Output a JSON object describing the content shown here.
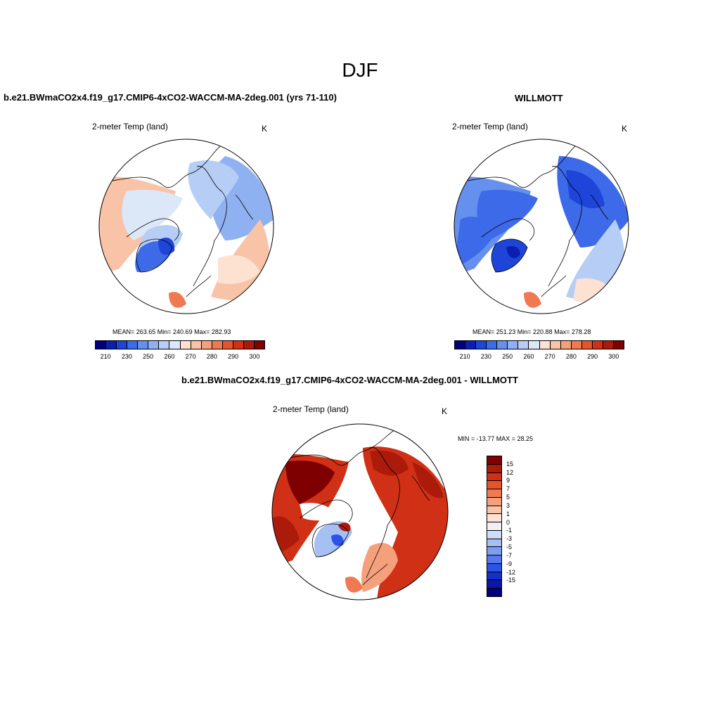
{
  "title": "DJF",
  "panels": {
    "model": {
      "title": "b.e21.BWmaCO2x4.f19_g17.CMIP6-4xCO2-WACCM-MA-2deg.001 (yrs 71-110)",
      "variable": "2-meter Temp (land)",
      "units": "K",
      "stats": "MEAN= 263.65  Min= 240.69  Max= 282.93",
      "mean": 263.65,
      "min": 240.69,
      "max": 282.93
    },
    "obs": {
      "title": "WILLMOTT",
      "variable": "2-meter Temp (land)",
      "units": "K",
      "stats": "MEAN= 251.23  Min= 220.88  Max= 278.28",
      "mean": 251.23,
      "min": 220.88,
      "max": 278.28
    },
    "diff": {
      "title": "b.e21.BWmaCO2x4.f19_g17.CMIP6-4xCO2-WACCM-MA-2deg.001 - WILLMOTT",
      "variable": "2-meter Temp (land)",
      "units": "K",
      "stats": "MIN = -13.77 MAX =  28.25",
      "min": -13.77,
      "max": 28.25
    }
  },
  "colorbar_abs": {
    "colors": [
      "#00007f",
      "#0a1fb0",
      "#1e44d8",
      "#3c6ae8",
      "#6690ee",
      "#8fb1f2",
      "#b6cdf5",
      "#dce8f8",
      "#fde2d2",
      "#f9c3a8",
      "#f5a07c",
      "#ef7a52",
      "#e6532e",
      "#cf3016",
      "#ab1a0a",
      "#7f0000"
    ],
    "tick_labels": [
      "210",
      "230",
      "250",
      "260",
      "270",
      "280",
      "290",
      "300"
    ]
  },
  "colorbar_diff": {
    "colors": [
      "#7f0000",
      "#ab1a0a",
      "#cf3016",
      "#e6532e",
      "#ef7a52",
      "#f5a07c",
      "#f9c3a8",
      "#fde2d2",
      "#f0f0f4",
      "#cfdcf6",
      "#a7c0f3",
      "#7c9ef0",
      "#5579ec",
      "#2c52e6",
      "#1430cc",
      "#0a18a6",
      "#00007f"
    ],
    "labels": [
      "15",
      "12",
      "9",
      "7",
      "5",
      "3",
      "1",
      "0",
      "-1",
      "-3",
      "-5",
      "-7",
      "-9",
      "-12",
      "-15"
    ]
  }
}
